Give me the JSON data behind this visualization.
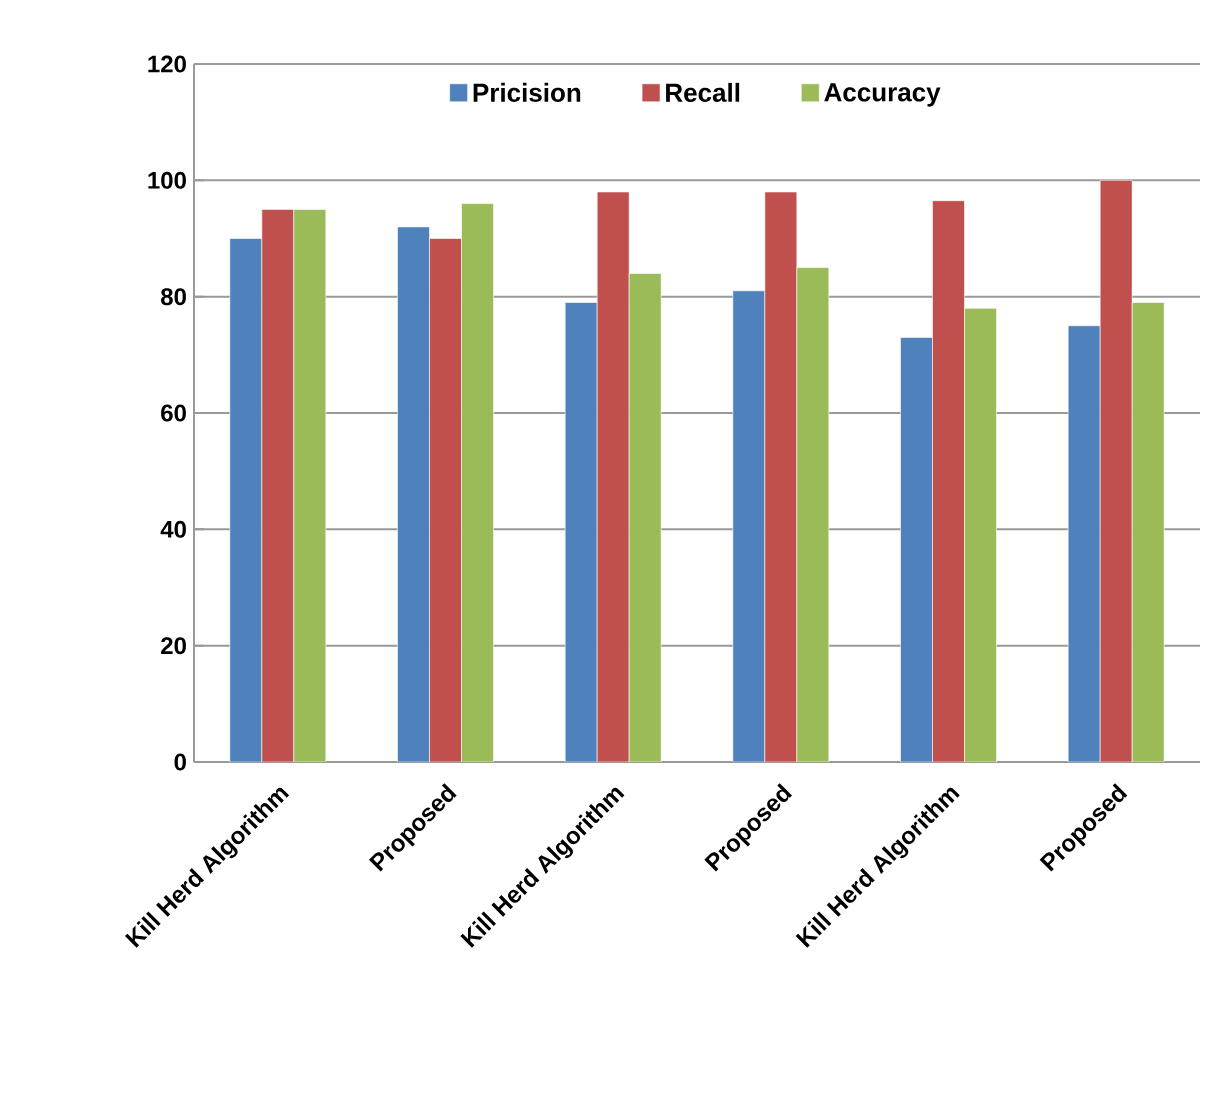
{
  "chart_data": {
    "type": "bar",
    "categories": [
      "Kill Herd Algorithm",
      "Proposed",
      "Kill Herd Algorithm",
      "Proposed",
      "Kill Herd Algorithm",
      "Proposed"
    ],
    "series": [
      {
        "name": "Pricision",
        "color": "#4f81bd",
        "values": [
          90,
          92,
          79,
          81,
          73,
          75
        ]
      },
      {
        "name": "Recall",
        "color": "#c0504d",
        "values": [
          95,
          90,
          98,
          98,
          96.5,
          100
        ]
      },
      {
        "name": "Accuracy",
        "color": "#9bbb59",
        "values": [
          95,
          96,
          84,
          85,
          78,
          79
        ]
      }
    ],
    "ylim": [
      0,
      120
    ],
    "yticks": [
      0,
      20,
      40,
      60,
      80,
      100,
      120
    ],
    "grid": "y",
    "legend": "top"
  }
}
